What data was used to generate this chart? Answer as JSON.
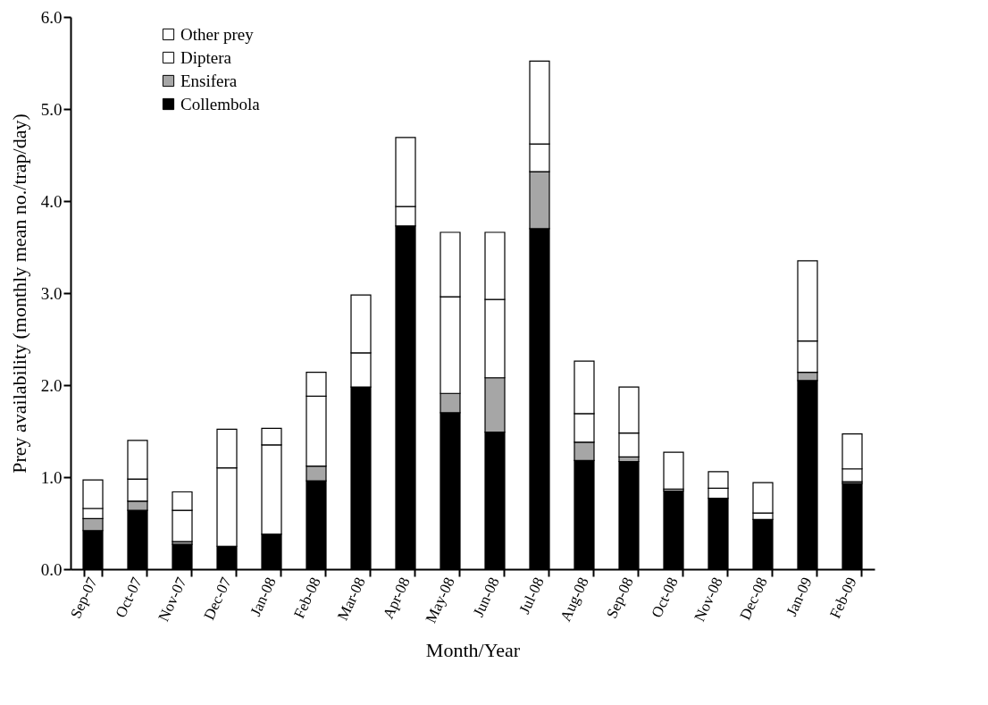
{
  "chart_data": {
    "type": "bar",
    "stacked": true,
    "xlabel": "Month/Year",
    "ylabel": "Prey availability (monthly mean no./trap/day)",
    "categories": [
      "Sep-07",
      "Oct-07",
      "Nov-07",
      "Dec-07",
      "Jan-08",
      "Feb-08",
      "Mar-08",
      "Apr-08",
      "May-08",
      "Jun-08",
      "Jul-08",
      "Aug-08",
      "Sep-08",
      "Oct-08",
      "Nov-08",
      "Dec-08",
      "Jan-09",
      "Feb-09"
    ],
    "series": [
      {
        "name": "Collembola",
        "color": "#000000",
        "values": [
          0.42,
          0.64,
          0.27,
          0.25,
          0.38,
          0.96,
          1.98,
          3.73,
          1.7,
          1.49,
          3.7,
          1.18,
          1.17,
          0.85,
          0.77,
          0.54,
          2.05,
          0.93
        ]
      },
      {
        "name": "Ensifera",
        "color": "#a6a6a6",
        "values": [
          0.13,
          0.1,
          0.03,
          0,
          0,
          0.16,
          0,
          0,
          0.21,
          0.59,
          0.62,
          0.2,
          0.05,
          0,
          0,
          0,
          0.09,
          0.02
        ]
      },
      {
        "name": "Diptera",
        "color": "#ffffff",
        "values": [
          0.11,
          0.24,
          0.34,
          0.85,
          0.97,
          0.76,
          0.37,
          0.21,
          1.05,
          0.85,
          0.3,
          0.31,
          0.26,
          0.02,
          0.11,
          0.07,
          0.34,
          0.14
        ]
      },
      {
        "name": "Other prey",
        "color": "#ffffff",
        "values": [
          0.31,
          0.42,
          0.2,
          0.42,
          0.18,
          0.26,
          0.63,
          0.75,
          0.7,
          0.73,
          0.9,
          0.57,
          0.5,
          0.4,
          0.18,
          0.33,
          0.87,
          0.38
        ]
      }
    ],
    "ylim": [
      0,
      6
    ],
    "yticks": [
      {
        "value": 0,
        "label": "0.0"
      },
      {
        "value": 1,
        "label": "1.0"
      },
      {
        "value": 2,
        "label": "2.0"
      },
      {
        "value": 3,
        "label": "3.0"
      },
      {
        "value": 4,
        "label": "4.0"
      },
      {
        "value": 5,
        "label": "5.0"
      },
      {
        "value": 6,
        "label": "6.0"
      }
    ],
    "grid": false,
    "legend": "top left"
  }
}
